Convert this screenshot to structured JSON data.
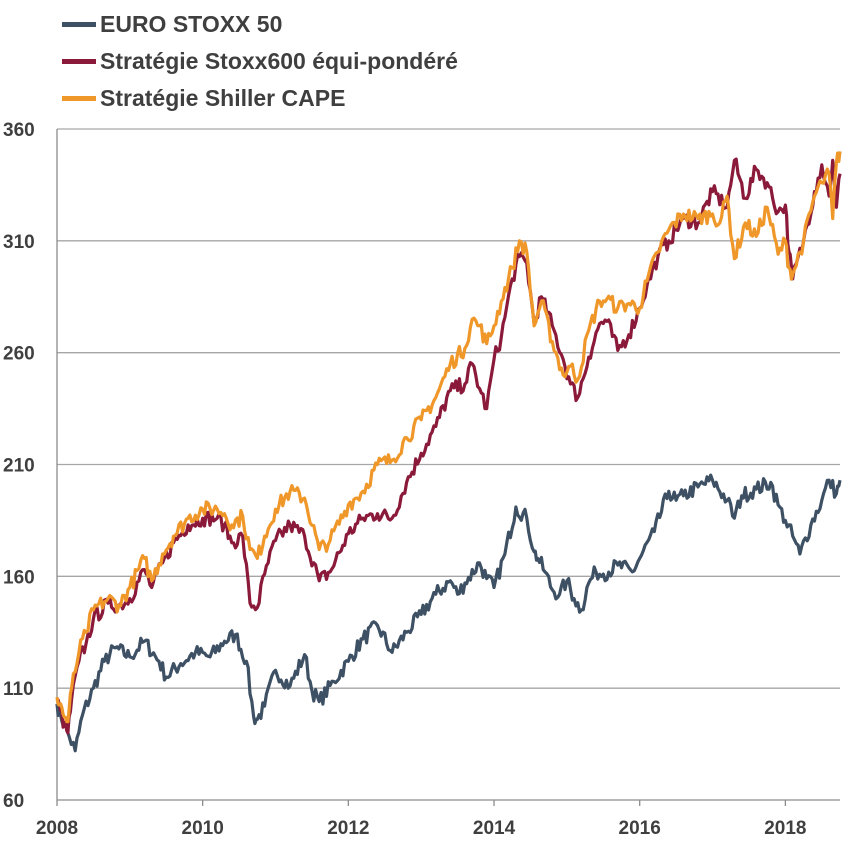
{
  "chart_data": {
    "type": "line",
    "title": "",
    "xlabel": "",
    "ylabel": "",
    "xlim": [
      2008.0,
      2018.75
    ],
    "ylim": [
      60,
      360
    ],
    "x_ticks": [
      2008,
      2010,
      2012,
      2014,
      2016,
      2018
    ],
    "x_tick_labels": [
      "2008",
      "2010",
      "2012",
      "2014",
      "2016",
      "2018"
    ],
    "y_ticks": [
      60,
      110,
      160,
      210,
      260,
      310,
      360
    ],
    "y_tick_labels": [
      "60",
      "110",
      "160",
      "210",
      "260",
      "310",
      "360"
    ],
    "grid": "horizontal",
    "legend": "top-left",
    "series": [
      {
        "name": "EURO STOXX 50",
        "color": "#3e5063",
        "x": [
          2008.0,
          2008.05,
          2008.1,
          2008.17,
          2008.25,
          2008.35,
          2008.5,
          2008.65,
          2008.8,
          2009.0,
          2009.2,
          2009.4,
          2009.5,
          2009.7,
          2009.9,
          2010.1,
          2010.3,
          2010.45,
          2010.6,
          2010.7,
          2010.75,
          2010.85,
          2011.0,
          2011.2,
          2011.4,
          2011.5,
          2011.6,
          2011.8,
          2012.0,
          2012.2,
          2012.4,
          2012.6,
          2012.8,
          2013.0,
          2013.2,
          2013.4,
          2013.5,
          2013.6,
          2013.8,
          2013.9,
          2014.0,
          2014.15,
          2014.3,
          2014.45,
          2014.55,
          2014.6,
          2014.7,
          2014.8,
          2014.9,
          2015.0,
          2015.1,
          2015.2,
          2015.3,
          2015.4,
          2015.5,
          2015.7,
          2015.9,
          2016.0,
          2016.2,
          2016.4,
          2016.5,
          2016.6,
          2016.8,
          2017.0,
          2017.2,
          2017.3,
          2017.4,
          2017.6,
          2017.8,
          2017.9,
          2018.0,
          2018.1,
          2018.2,
          2018.35,
          2018.5,
          2018.6,
          2018.7,
          2018.75
        ],
        "values": [
          103,
          98,
          94,
          88,
          82,
          98,
          110,
          122,
          128,
          124,
          131,
          122,
          115,
          121,
          126,
          124,
          131,
          134,
          122,
          97,
          96,
          102,
          118,
          111,
          125,
          109,
          104,
          113,
          122,
          132,
          138,
          126,
          135,
          143,
          152,
          158,
          152,
          157,
          166,
          159,
          155,
          170,
          191,
          186,
          171,
          168,
          162,
          154,
          152,
          158,
          150,
          145,
          157,
          162,
          161,
          165,
          162,
          168,
          180,
          198,
          194,
          196,
          200,
          203,
          194,
          186,
          196,
          199,
          202,
          192,
          185,
          178,
          170,
          183,
          194,
          203,
          197,
          203
        ]
      },
      {
        "name": "Stratégie Stoxx600 équi-pondéré",
        "color": "#8b1a3a",
        "x": [
          2008.0,
          2008.05,
          2008.1,
          2008.15,
          2008.2,
          2008.3,
          2008.4,
          2008.5,
          2008.7,
          2008.85,
          2009.0,
          2009.2,
          2009.3,
          2009.45,
          2009.6,
          2009.8,
          2010.0,
          2010.2,
          2010.3,
          2010.4,
          2010.55,
          2010.65,
          2010.75,
          2010.85,
          2011.0,
          2011.2,
          2011.4,
          2011.6,
          2011.75,
          2012.0,
          2012.2,
          2012.4,
          2012.6,
          2012.8,
          2013.0,
          2013.2,
          2013.4,
          2013.6,
          2013.7,
          2013.8,
          2013.9,
          2014.0,
          2014.1,
          2014.25,
          2014.35,
          2014.45,
          2014.55,
          2014.65,
          2014.8,
          2014.95,
          2015.05,
          2015.15,
          2015.3,
          2015.45,
          2015.55,
          2015.7,
          2015.85,
          2016.0,
          2016.1,
          2016.25,
          2016.4,
          2016.6,
          2016.8,
          2017.0,
          2017.2,
          2017.3,
          2017.45,
          2017.6,
          2017.75,
          2017.9,
          2018.0,
          2018.05,
          2018.1,
          2018.25,
          2018.4,
          2018.5,
          2018.6,
          2018.65,
          2018.7,
          2018.75
        ],
        "values": [
          104,
          100,
          93,
          90,
          105,
          122,
          130,
          141,
          148,
          147,
          150,
          163,
          155,
          166,
          175,
          183,
          186,
          186,
          183,
          175,
          178,
          148,
          146,
          161,
          176,
          183,
          178,
          158,
          162,
          179,
          186,
          188,
          186,
          202,
          215,
          227,
          243,
          246,
          255,
          244,
          235,
          257,
          267,
          293,
          303,
          300,
          273,
          285,
          272,
          257,
          246,
          240,
          258,
          273,
          274,
          261,
          268,
          280,
          290,
          303,
          310,
          320,
          318,
          332,
          325,
          346,
          329,
          342,
          336,
          323,
          326,
          305,
          293,
          310,
          332,
          344,
          330,
          346,
          325,
          340
        ]
      },
      {
        "name": "Stratégie Shiller CAPE",
        "color": "#f0972a",
        "x": [
          2008.0,
          2008.05,
          2008.1,
          2008.15,
          2008.2,
          2008.3,
          2008.4,
          2008.5,
          2008.7,
          2008.85,
          2009.0,
          2009.2,
          2009.3,
          2009.45,
          2009.6,
          2009.8,
          2010.0,
          2010.2,
          2010.3,
          2010.4,
          2010.55,
          2010.65,
          2010.75,
          2010.85,
          2011.0,
          2011.2,
          2011.4,
          2011.6,
          2011.75,
          2012.0,
          2012.2,
          2012.4,
          2012.6,
          2012.8,
          2013.0,
          2013.2,
          2013.4,
          2013.6,
          2013.7,
          2013.8,
          2013.9,
          2014.0,
          2014.1,
          2014.25,
          2014.35,
          2014.45,
          2014.55,
          2014.65,
          2014.8,
          2014.95,
          2015.05,
          2015.15,
          2015.3,
          2015.45,
          2015.55,
          2015.7,
          2015.85,
          2016.0,
          2016.1,
          2016.25,
          2016.4,
          2016.6,
          2016.8,
          2017.0,
          2017.1,
          2017.2,
          2017.3,
          2017.45,
          2017.6,
          2017.75,
          2017.9,
          2018.0,
          2018.05,
          2018.1,
          2018.25,
          2018.4,
          2018.5,
          2018.6,
          2018.65,
          2018.7,
          2018.75
        ],
        "values": [
          106,
          103,
          97,
          95,
          110,
          126,
          135,
          145,
          150,
          147,
          155,
          168,
          158,
          170,
          178,
          186,
          190,
          190,
          188,
          183,
          187,
          172,
          168,
          178,
          190,
          198,
          195,
          172,
          176,
          192,
          198,
          210,
          212,
          222,
          230,
          240,
          255,
          262,
          275,
          272,
          264,
          272,
          283,
          298,
          310,
          305,
          272,
          283,
          265,
          250,
          254,
          248,
          270,
          283,
          284,
          280,
          282,
          280,
          292,
          305,
          315,
          322,
          320,
          322,
          318,
          330,
          302,
          318,
          312,
          325,
          304,
          310,
          298,
          295,
          310,
          330,
          336,
          340,
          320,
          345,
          350
        ]
      }
    ]
  }
}
